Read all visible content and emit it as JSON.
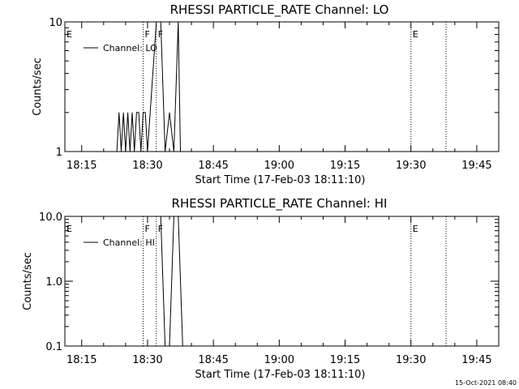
{
  "chart_data": [
    {
      "type": "line",
      "title": "RHESSI PARTICLE_RATE Channel: LO",
      "xlabel": "Start Time (17-Feb-03 18:11:10)",
      "ylabel": "Counts/sec",
      "y_scale": "log",
      "xlim": [
        "18:11:10",
        "19:50:00"
      ],
      "ylim": [
        1,
        10
      ],
      "x_ticks": [
        "18:15",
        "18:30",
        "18:45",
        "19:00",
        "19:15",
        "19:30",
        "19:45"
      ],
      "y_ticks": [
        "1",
        "10"
      ],
      "legend": {
        "label": "Channel: LO",
        "placement": "top-left"
      },
      "markers": [
        {
          "label": "E",
          "time": "18:11:10"
        },
        {
          "label": "F",
          "time": "18:29:00"
        },
        {
          "label": "F",
          "time": "18:32:00"
        },
        {
          "label": "E",
          "time": "19:30:00"
        },
        {
          "label": "",
          "time": "19:38:00"
        }
      ],
      "segments": [
        {
          "start": "18:29:00",
          "end": "18:32:00"
        },
        {
          "start": "18:35:00",
          "end": "18:38:00"
        },
        {
          "start": "19:30:00",
          "end": "19:38:00"
        }
      ],
      "series": [
        {
          "name": "Channel: LO",
          "x": [
            "18:23:00",
            "18:23:30",
            "18:24:00",
            "18:24:30",
            "18:25:00",
            "18:25:30",
            "18:26:00",
            "18:26:30",
            "18:27:00",
            "18:27:30",
            "18:28:00",
            "18:28:30",
            "18:29:00",
            "18:29:30",
            "18:30:00",
            "18:32:00",
            "18:33:00",
            "18:34:00",
            "18:35:00",
            "18:36:00",
            "18:37:00",
            "18:37:30",
            "18:38:00"
          ],
          "y": [
            1,
            2,
            1,
            2,
            1,
            2,
            1,
            2,
            1,
            2,
            2,
            1,
            2,
            2,
            1,
            10,
            10,
            1,
            2,
            1,
            10,
            1,
            1
          ]
        }
      ]
    },
    {
      "type": "line",
      "title": "RHESSI PARTICLE_RATE Channel: HI",
      "xlabel": "Start Time (17-Feb-03 18:11:10)",
      "ylabel": "Counts/sec",
      "y_scale": "log",
      "xlim": [
        "18:11:10",
        "19:50:00"
      ],
      "ylim": [
        0.1,
        10
      ],
      "x_ticks": [
        "18:15",
        "18:30",
        "18:45",
        "19:00",
        "19:15",
        "19:30",
        "19:45"
      ],
      "y_ticks": [
        "0.1",
        "1.0",
        "10.0"
      ],
      "legend": {
        "label": "Channel: HI",
        "placement": "top-left"
      },
      "markers": [
        {
          "label": "E",
          "time": "18:11:10"
        },
        {
          "label": "F",
          "time": "18:29:00"
        },
        {
          "label": "F",
          "time": "18:32:00"
        },
        {
          "label": "E",
          "time": "19:30:00"
        },
        {
          "label": "",
          "time": "19:38:00"
        }
      ],
      "segments": [
        {
          "start": "18:29:00",
          "end": "18:32:00"
        },
        {
          "start": "18:35:00",
          "end": "18:38:00"
        },
        {
          "start": "19:30:00",
          "end": "19:38:00"
        }
      ],
      "series": [
        {
          "name": "Channel: HI",
          "x": [
            "18:32:00",
            "18:33:00",
            "18:34:00",
            "18:35:00",
            "18:36:00",
            "18:37:00",
            "18:38:00"
          ],
          "y": [
            10,
            10,
            0.1,
            0.1,
            10,
            10,
            0.1
          ]
        }
      ]
    }
  ],
  "footer": {
    "stamp": "15-Oct-2021 08:40"
  }
}
